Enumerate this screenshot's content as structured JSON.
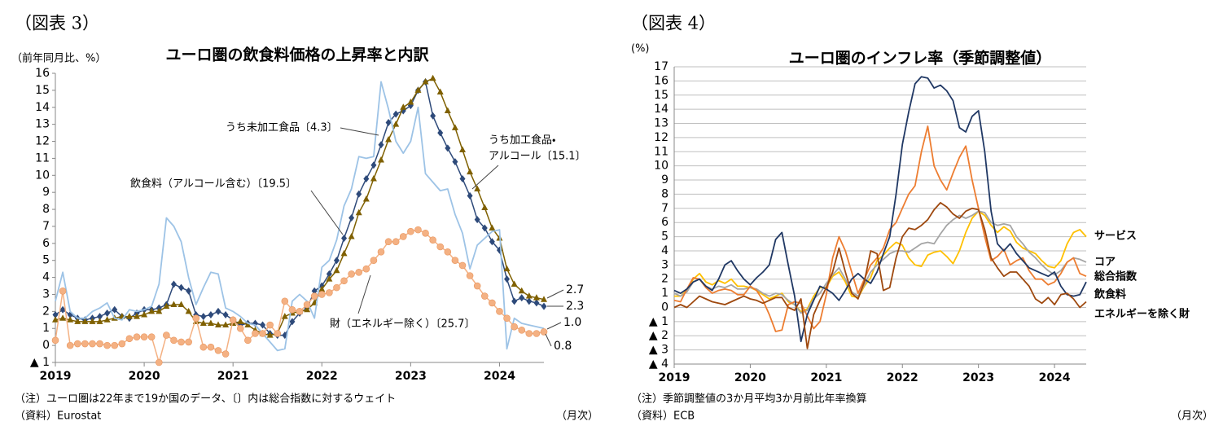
{
  "chart_data": [
    {
      "type": "line",
      "figure_label": "（図表 3）",
      "title": "ユーロ圏の飲食料価格の上昇率と内訳",
      "y_label": "（前年同月比、%）",
      "note": "（注）ユーロ圏は22年まで19か国のデータ、〔〕内は総合指数に対するウェイト",
      "source": "（資料）Eurostat",
      "x_unit": "（月次）",
      "legend": "callout",
      "grid": false,
      "x": [
        "2019-01",
        "2019-02",
        "2019-03",
        "2019-04",
        "2019-05",
        "2019-06",
        "2019-07",
        "2019-08",
        "2019-09",
        "2019-10",
        "2019-11",
        "2019-12",
        "2020-01",
        "2020-02",
        "2020-03",
        "2020-04",
        "2020-05",
        "2020-06",
        "2020-07",
        "2020-08",
        "2020-09",
        "2020-10",
        "2020-11",
        "2020-12",
        "2021-01",
        "2021-02",
        "2021-03",
        "2021-04",
        "2021-05",
        "2021-06",
        "2021-07",
        "2021-08",
        "2021-09",
        "2021-10",
        "2021-11",
        "2021-12",
        "2022-01",
        "2022-02",
        "2022-03",
        "2022-04",
        "2022-05",
        "2022-06",
        "2022-07",
        "2022-08",
        "2022-09",
        "2022-10",
        "2022-11",
        "2022-12",
        "2023-01",
        "2023-02",
        "2023-03",
        "2023-04",
        "2023-05",
        "2023-06",
        "2023-07",
        "2023-08",
        "2023-09",
        "2023-10",
        "2023-11",
        "2023-12",
        "2024-01",
        "2024-02",
        "2024-03",
        "2024-04",
        "2024-05",
        "2024-06",
        "2024-07"
      ],
      "xlim": [
        "2019-01",
        "2024-07"
      ],
      "xticks": [
        2019,
        2020,
        2021,
        2022,
        2023,
        2024
      ],
      "ylim": [
        -1,
        16
      ],
      "yticks": [
        {
          "value": -1,
          "label": "▲ 1"
        },
        0,
        1,
        2,
        3,
        4,
        5,
        6,
        7,
        8,
        9,
        10,
        11,
        12,
        13,
        14,
        15,
        16
      ],
      "series": [
        {
          "name": "飲食料（アルコール含む）〔19.5〕",
          "color": "#2e4a7a",
          "marker": "diamond",
          "values": [
            1.8,
            2.1,
            1.8,
            1.6,
            1.5,
            1.6,
            1.7,
            1.9,
            2.1,
            1.7,
            1.6,
            1.9,
            2.1,
            2.1,
            2.2,
            2.4,
            3.6,
            3.4,
            3.2,
            1.8,
            1.7,
            1.8,
            2.0,
            1.8,
            1.5,
            1.2,
            1.3,
            1.3,
            1.2,
            0.7,
            0.6,
            0.6,
            1.4,
            1.9,
            2.2,
            3.2,
            3.5,
            4.2,
            5.0,
            6.3,
            7.5,
            8.9,
            9.8,
            10.6,
            11.8,
            13.1,
            13.6,
            13.8,
            14.1,
            15.0,
            15.5,
            13.5,
            12.5,
            11.6,
            10.8,
            9.8,
            8.8,
            7.4,
            6.9,
            6.1,
            5.6,
            3.9,
            2.6,
            2.8,
            2.6,
            2.5,
            2.3
          ]
        },
        {
          "name": "うち加工食品・\nアルコール〔15.1〕",
          "color": "#7f6000",
          "marker": "triangle",
          "values": [
            1.5,
            1.6,
            1.5,
            1.4,
            1.4,
            1.4,
            1.4,
            1.5,
            1.6,
            1.7,
            1.7,
            1.7,
            1.8,
            2.0,
            2.0,
            2.3,
            2.4,
            2.4,
            2.0,
            1.4,
            1.3,
            1.3,
            1.2,
            1.2,
            1.3,
            1.4,
            1.2,
            0.9,
            0.7,
            0.6,
            0.7,
            1.7,
            1.9,
            2.0,
            2.1,
            2.5,
            3.3,
            3.9,
            4.4,
            5.4,
            6.4,
            7.8,
            8.6,
            9.8,
            10.9,
            12.1,
            13.0,
            14.0,
            14.3,
            15.0,
            15.5,
            15.7,
            14.9,
            13.8,
            12.8,
            11.5,
            10.2,
            9.2,
            8.1,
            6.9,
            6.3,
            4.5,
            3.6,
            3.2,
            2.9,
            2.8,
            2.7
          ]
        },
        {
          "name": "うち未加工食品〔4.3〕",
          "color": "#9dc3e6",
          "marker": "none",
          "values": [
            2.6,
            4.3,
            2.0,
            1.6,
            1.6,
            2.0,
            2.2,
            2.5,
            1.6,
            1.5,
            2.1,
            2.0,
            2.1,
            2.3,
            3.6,
            7.5,
            7.0,
            6.1,
            4.0,
            2.4,
            3.4,
            4.3,
            4.2,
            2.2,
            2.0,
            1.7,
            1.3,
            1.2,
            0.7,
            0.2,
            -0.3,
            -0.2,
            2.6,
            3.0,
            2.6,
            1.6,
            4.6,
            5.0,
            6.2,
            8.2,
            9.2,
            11.1,
            11.0,
            11.1,
            15.5,
            13.9,
            12.0,
            11.3,
            12.0,
            14.0,
            10.1,
            9.6,
            9.1,
            9.2,
            7.7,
            6.6,
            4.5,
            5.9,
            6.3,
            6.7,
            6.8,
            -0.2,
            1.6,
            1.3,
            1.2,
            1.1,
            1.0
          ]
        },
        {
          "name": "財（エネルギー除く）〔25.7〕",
          "color": "#f4b183",
          "marker": "circle",
          "values": [
            0.3,
            3.2,
            0.0,
            0.1,
            0.1,
            0.1,
            0.1,
            0.0,
            0.0,
            0.1,
            0.4,
            0.5,
            0.5,
            0.5,
            -1.0,
            0.6,
            0.3,
            0.2,
            0.2,
            1.6,
            -0.1,
            -0.1,
            -0.3,
            -0.5,
            1.5,
            1.0,
            0.3,
            0.7,
            0.7,
            1.2,
            0.7,
            2.6,
            2.1,
            2.0,
            2.4,
            2.9,
            3.0,
            3.1,
            3.4,
            3.8,
            4.2,
            4.3,
            4.5,
            5.0,
            5.5,
            6.1,
            6.1,
            6.4,
            6.7,
            6.8,
            6.6,
            6.2,
            5.8,
            5.5,
            5.0,
            4.7,
            4.1,
            3.5,
            2.9,
            2.5,
            2.0,
            1.6,
            1.1,
            0.9,
            0.7,
            0.7,
            0.8
          ]
        }
      ],
      "annotations": [
        "2.7",
        "2.3",
        "1.0",
        "0.8"
      ]
    },
    {
      "type": "line",
      "figure_label": "（図表 4）",
      "title": "ユーロ圏のインフレ率（季節調整値）",
      "y_label": "(%)",
      "note": "（注）季節調整値の3か月平均3か月前比年率換算",
      "source": "（資料）ECB",
      "x_unit": "（月次）",
      "legend": "right",
      "grid": true,
      "x": [
        "2019-01",
        "2019-02",
        "2019-03",
        "2019-04",
        "2019-05",
        "2019-06",
        "2019-07",
        "2019-08",
        "2019-09",
        "2019-10",
        "2019-11",
        "2019-12",
        "2020-01",
        "2020-02",
        "2020-03",
        "2020-04",
        "2020-05",
        "2020-06",
        "2020-07",
        "2020-08",
        "2020-09",
        "2020-10",
        "2020-11",
        "2020-12",
        "2021-01",
        "2021-02",
        "2021-03",
        "2021-04",
        "2021-05",
        "2021-06",
        "2021-07",
        "2021-08",
        "2021-09",
        "2021-10",
        "2021-11",
        "2021-12",
        "2022-01",
        "2022-02",
        "2022-03",
        "2022-04",
        "2022-05",
        "2022-06",
        "2022-07",
        "2022-08",
        "2022-09",
        "2022-10",
        "2022-11",
        "2022-12",
        "2023-01",
        "2023-02",
        "2023-03",
        "2023-04",
        "2023-05",
        "2023-06",
        "2023-07",
        "2023-08",
        "2023-09",
        "2023-10",
        "2023-11",
        "2023-12",
        "2024-01",
        "2024-02",
        "2024-03",
        "2024-04",
        "2024-05",
        "2024-06"
      ],
      "xlim": [
        "2019-01",
        "2024-06"
      ],
      "xticks": [
        2019,
        2020,
        2021,
        2022,
        2023,
        2024
      ],
      "ylim": [
        -4,
        17
      ],
      "yticks": [
        {
          "value": -4,
          "label": "▲ 4"
        },
        {
          "value": -3,
          "label": "▲ 3"
        },
        {
          "value": -2,
          "label": "▲ 2"
        },
        {
          "value": -1,
          "label": "▲ 1"
        },
        0,
        1,
        2,
        3,
        4,
        5,
        6,
        7,
        8,
        9,
        10,
        11,
        12,
        13,
        14,
        15,
        16,
        17
      ],
      "series": [
        {
          "name": "サービス",
          "color": "#ffc000",
          "marker": "none",
          "values": [
            0.8,
            0.8,
            1.2,
            2.0,
            2.4,
            1.8,
            1.6,
            1.9,
            1.7,
            2.0,
            1.5,
            1.5,
            1.4,
            1.2,
            0.9,
            0.6,
            0.8,
            1.0,
            0.4,
            0.2,
            -0.3,
            -0.1,
            0.8,
            1.4,
            1.4,
            2.2,
            2.5,
            1.8,
            0.8,
            0.7,
            1.5,
            2.1,
            3.3,
            3.7,
            4.2,
            4.6,
            4.4,
            3.5,
            3.0,
            2.9,
            3.7,
            3.9,
            4.0,
            3.6,
            3.1,
            4.0,
            5.3,
            6.3,
            6.8,
            6.5,
            5.8,
            5.3,
            5.7,
            5.4,
            4.6,
            4.2,
            4.0,
            3.8,
            3.3,
            2.9,
            2.8,
            3.3,
            4.5,
            5.3,
            5.5,
            5.0
          ]
        },
        {
          "name": "コア",
          "color": "#a5a5a5",
          "marker": "none",
          "values": [
            1.0,
            0.8,
            1.1,
            1.8,
            2.0,
            1.5,
            1.3,
            1.5,
            1.4,
            1.6,
            1.3,
            1.3,
            1.4,
            1.3,
            1.0,
            0.8,
            1.0,
            0.9,
            0.5,
            0.2,
            -0.4,
            -0.2,
            0.6,
            1.0,
            1.7,
            2.3,
            2.8,
            2.0,
            1.1,
            0.8,
            1.6,
            2.5,
            3.0,
            3.4,
            3.8,
            4.0,
            4.0,
            3.9,
            4.2,
            4.5,
            4.6,
            4.5,
            5.2,
            5.8,
            6.2,
            6.5,
            6.3,
            6.5,
            6.8,
            6.7,
            6.0,
            5.8,
            5.9,
            5.8,
            5.0,
            4.5,
            3.9,
            3.5,
            3.0,
            2.6,
            2.3,
            2.6,
            3.2,
            3.5,
            3.4,
            3.2
          ]
        },
        {
          "name": "総合指数",
          "color": "#ed7d31",
          "marker": "none",
          "values": [
            0.5,
            0.4,
            1.3,
            2.1,
            2.0,
            1.4,
            1.0,
            1.2,
            1.3,
            1.2,
            0.9,
            0.9,
            1.5,
            1.2,
            0.5,
            -0.5,
            -1.7,
            -1.6,
            0.2,
            0.4,
            0.3,
            -0.6,
            -1.5,
            -1.0,
            0.9,
            3.5,
            5.0,
            4.0,
            2.5,
            1.0,
            2.0,
            3.0,
            3.5,
            4.2,
            5.5,
            6.0,
            7.0,
            8.0,
            8.6,
            11.0,
            12.8,
            10.0,
            9.0,
            8.3,
            9.5,
            10.6,
            11.4,
            9.0,
            7.0,
            5.0,
            3.3,
            3.6,
            4.1,
            3.0,
            3.3,
            3.5,
            2.6,
            2.0,
            2.0,
            1.6,
            1.8,
            2.4,
            3.2,
            3.5,
            2.4,
            2.2
          ]
        },
        {
          "name": "飲食料",
          "color": "#203864",
          "marker": "none",
          "values": [
            1.2,
            1.0,
            1.3,
            1.8,
            2.0,
            1.5,
            1.2,
            2.0,
            3.0,
            3.3,
            2.6,
            2.0,
            1.6,
            2.1,
            2.5,
            3.0,
            4.8,
            5.3,
            3.0,
            0.8,
            -2.4,
            -0.5,
            0.5,
            1.5,
            1.3,
            1.0,
            0.5,
            1.2,
            2.0,
            2.4,
            2.0,
            1.7,
            2.5,
            3.8,
            5.0,
            8.0,
            11.5,
            13.8,
            15.8,
            16.3,
            16.2,
            15.5,
            15.7,
            15.3,
            14.6,
            12.7,
            12.4,
            13.5,
            13.9,
            11.0,
            6.8,
            4.5,
            4.0,
            4.5,
            3.8,
            3.3,
            2.8,
            2.6,
            2.4,
            2.2,
            2.5,
            1.5,
            0.9,
            0.8,
            0.9,
            1.8
          ]
        },
        {
          "name": "エネルギーを除く財",
          "color": "#9e480e",
          "marker": "none",
          "values": [
            0.0,
            0.2,
            0.0,
            0.4,
            0.8,
            0.6,
            0.4,
            0.3,
            0.2,
            0.4,
            0.6,
            0.8,
            0.6,
            0.5,
            0.3,
            0.5,
            0.7,
            0.7,
            0.0,
            -0.2,
            0.6,
            -2.9,
            -0.5,
            0.5,
            1.4,
            2.5,
            4.2,
            2.5,
            1.0,
            0.6,
            1.8,
            4.0,
            3.8,
            1.2,
            1.4,
            3.5,
            5.0,
            5.6,
            5.5,
            5.8,
            6.2,
            6.9,
            7.4,
            7.1,
            6.6,
            6.3,
            6.8,
            7.0,
            6.9,
            5.5,
            3.5,
            2.8,
            2.2,
            2.5,
            2.5,
            2.0,
            1.5,
            0.6,
            0.3,
            0.7,
            0.2,
            0.9,
            1.0,
            0.6,
            0.0,
            0.4
          ]
        }
      ]
    }
  ]
}
